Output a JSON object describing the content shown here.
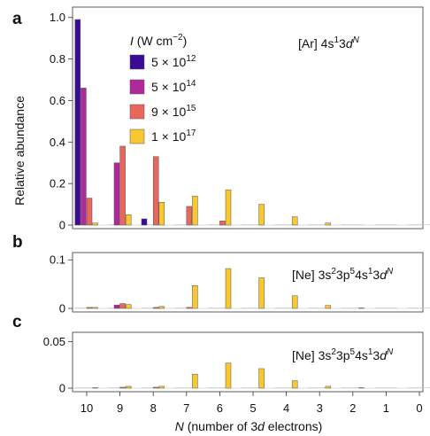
{
  "chart_data": [
    {
      "type": "bar",
      "panel": "a",
      "annotation": {
        "pre": "[Ar] 4s",
        "s1": "1",
        "mid": "3",
        "d": "d",
        "N": "N"
      },
      "ylabel": "Relative abundance",
      "ylim": [
        0,
        1.05
      ],
      "yticks": [
        "0",
        "0.2",
        "0.4",
        "0.6",
        "0.8",
        "1.0"
      ],
      "ytick_values": [
        0,
        0.2,
        0.4,
        0.6,
        0.8,
        1.0
      ],
      "categories": [
        "10",
        "9",
        "8",
        "7",
        "6",
        "5",
        "4",
        "3",
        "2",
        "1",
        "0"
      ],
      "legend": {
        "title_i": "I",
        "title_rest": " (W cm",
        "title_exp": "−2",
        "title_close": ")",
        "position": "top-left"
      },
      "series": [
        {
          "name": "5 × 10",
          "exp": "12",
          "color": "#3a0b96",
          "values": [
            0.99,
            0.0,
            0.03,
            0.0,
            0.0,
            0.0,
            0.0,
            0.0,
            0.0,
            0.0,
            0.0
          ]
        },
        {
          "name": "5 × 10",
          "exp": "14",
          "color": "#b0289c",
          "values": [
            0.66,
            0.3,
            0.0,
            0.0,
            0.0,
            0.0,
            0.0,
            0.0,
            0.0,
            0.0,
            0.0
          ]
        },
        {
          "name": "9 × 10",
          "exp": "15",
          "color": "#e8665c",
          "values": [
            0.13,
            0.38,
            0.33,
            0.09,
            0.02,
            0.0,
            0.0,
            0.0,
            0.0,
            0.0,
            0.0
          ]
        },
        {
          "name": "1 × 10",
          "exp": "17",
          "color": "#f9c730",
          "values": [
            0.01,
            0.05,
            0.11,
            0.14,
            0.17,
            0.1,
            0.04,
            0.01,
            0.0,
            0.0,
            0.0
          ]
        }
      ]
    },
    {
      "type": "bar",
      "panel": "b",
      "annotation": {
        "pre": "[Ne] 3s",
        "s2": "2",
        "p": "3p",
        "p5": "5",
        "s": "4s",
        "s1": "1",
        "mid": "3",
        "d": "d",
        "N": "N"
      },
      "ylim": [
        0,
        0.115
      ],
      "yticks": [
        "0",
        "0.1"
      ],
      "ytick_values": [
        0,
        0.1
      ],
      "categories": [
        "10",
        "9",
        "8",
        "7",
        "6",
        "5",
        "4",
        "3",
        "2",
        "1",
        "0"
      ],
      "series": [
        {
          "color": "#3a0b96",
          "values": [
            0,
            0,
            0,
            0,
            0,
            0,
            0,
            0,
            0,
            0,
            0
          ]
        },
        {
          "color": "#b0289c",
          "values": [
            0,
            0.007,
            0,
            0,
            0,
            0,
            0,
            0,
            0,
            0,
            0
          ]
        },
        {
          "color": "#e8665c",
          "values": [
            0.002,
            0.01,
            0.002,
            0.002,
            0,
            0,
            0,
            0,
            0,
            0,
            0
          ]
        },
        {
          "color": "#f9c730",
          "values": [
            0.002,
            0.008,
            0.004,
            0.047,
            0.082,
            0.063,
            0.026,
            0.006,
            0.001,
            0,
            0
          ]
        }
      ]
    },
    {
      "type": "bar",
      "panel": "c",
      "annotation": {
        "pre": "[Ne] 3s",
        "s2": "2",
        "p": "3p",
        "p5": "5",
        "s": "4s",
        "s1": "1",
        "mid": "3",
        "d": "d",
        "N": "N"
      },
      "ylim": [
        0,
        0.06
      ],
      "yticks": [
        "0",
        "0.05"
      ],
      "ytick_values": [
        0,
        0.05
      ],
      "xlabel": {
        "N": "N",
        "pre": " (number of 3",
        "d": "d",
        "post": " electrons)"
      },
      "categories": [
        "10",
        "9",
        "8",
        "7",
        "6",
        "5",
        "4",
        "3",
        "2",
        "1",
        "0"
      ],
      "series": [
        {
          "color": "#3a0b96",
          "values": [
            0,
            0,
            0,
            0,
            0,
            0,
            0,
            0,
            0,
            0,
            0
          ]
        },
        {
          "color": "#b0289c",
          "values": [
            0,
            0,
            0,
            0,
            0,
            0,
            0,
            0,
            0,
            0,
            0
          ]
        },
        {
          "color": "#e8665c",
          "values": [
            0,
            0.001,
            0.001,
            0,
            0,
            0,
            0,
            0,
            0,
            0,
            0
          ]
        },
        {
          "color": "#f9c730",
          "values": [
            0.0005,
            0.002,
            0.002,
            0.015,
            0.027,
            0.021,
            0.008,
            0.002,
            0.0005,
            0,
            0
          ]
        }
      ]
    }
  ]
}
